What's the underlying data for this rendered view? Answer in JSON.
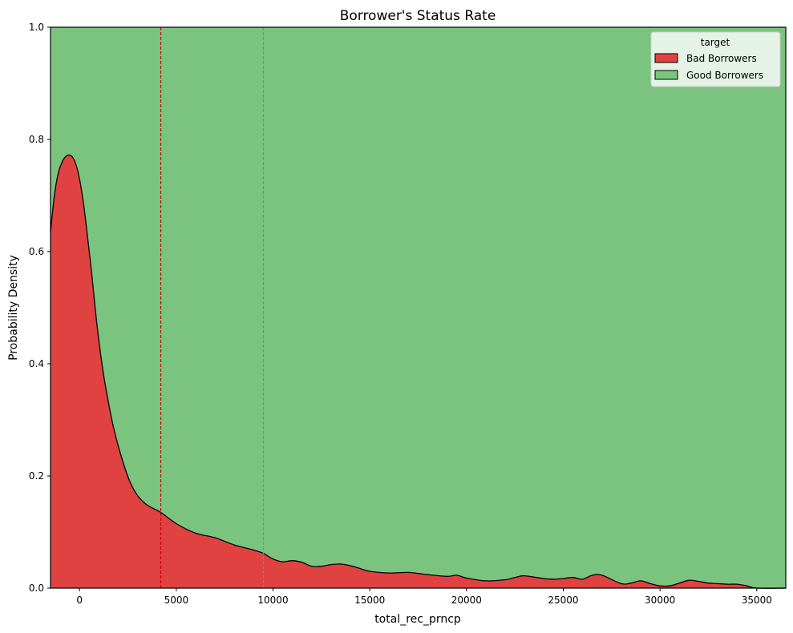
{
  "chart_data": {
    "type": "area",
    "stacked": true,
    "normalized": true,
    "title": "Borrower's Status Rate",
    "xlabel": "total_rec_prncp",
    "ylabel": "Probability Density",
    "xlim": [
      -1500,
      36500
    ],
    "ylim": [
      0,
      1.0
    ],
    "xticks": [
      0,
      5000,
      10000,
      15000,
      20000,
      25000,
      30000,
      35000
    ],
    "xtick_labels": [
      "0",
      "5000",
      "10000",
      "15000",
      "20000",
      "25000",
      "30000",
      "35000"
    ],
    "yticks": [
      0,
      0.2,
      0.4,
      0.6,
      0.8,
      1.0
    ],
    "ytick_labels": [
      "0.0",
      "0.2",
      "0.4",
      "0.6",
      "0.8",
      "1.0"
    ],
    "grid": false,
    "legend": {
      "title": "target",
      "placement": "top-right"
    },
    "series": [
      {
        "name": "Bad Borrowers",
        "color": "#e04242",
        "x": [
          -1500,
          -1300,
          -1100,
          -900,
          -700,
          -500,
          -300,
          -100,
          100,
          300,
          600,
          900,
          1200,
          1500,
          1800,
          2200,
          2600,
          3000,
          3500,
          4200,
          5000,
          6000,
          7000,
          8000,
          9000,
          9500,
          10000,
          10500,
          11000,
          11500,
          12000,
          12500,
          13000,
          13500,
          14000,
          14500,
          15000,
          16000,
          17000,
          18000,
          19000,
          19500,
          20000,
          21000,
          22000,
          22500,
          23000,
          24000,
          24500,
          25000,
          25500,
          26000,
          26500,
          27000,
          28000,
          28500,
          29000,
          29500,
          30000,
          30500,
          31000,
          31500,
          32000,
          32500,
          33000,
          33500,
          34000,
          34500,
          35000,
          36500
        ],
        "values": [
          0.635,
          0.7,
          0.74,
          0.76,
          0.77,
          0.772,
          0.765,
          0.745,
          0.71,
          0.66,
          0.57,
          0.47,
          0.39,
          0.33,
          0.28,
          0.23,
          0.19,
          0.165,
          0.148,
          0.135,
          0.115,
          0.098,
          0.09,
          0.077,
          0.068,
          0.062,
          0.052,
          0.047,
          0.049,
          0.046,
          0.039,
          0.039,
          0.042,
          0.043,
          0.04,
          0.035,
          0.03,
          0.027,
          0.028,
          0.024,
          0.021,
          0.023,
          0.018,
          0.013,
          0.015,
          0.019,
          0.022,
          0.017,
          0.016,
          0.017,
          0.019,
          0.016,
          0.023,
          0.023,
          0.008,
          0.009,
          0.013,
          0.008,
          0.004,
          0.004,
          0.009,
          0.014,
          0.012,
          0.009,
          0.008,
          0.007,
          0.007,
          0.004,
          0.0,
          0.0
        ]
      },
      {
        "name": "Good Borrowers",
        "color": "#7bc47f",
        "fill_to": 1.0
      }
    ],
    "reference_lines": [
      {
        "x": 4200,
        "color": "#cc0000",
        "style": "dashed"
      },
      {
        "x": 9500,
        "color": "#4caf50",
        "style": "dashed"
      }
    ]
  }
}
